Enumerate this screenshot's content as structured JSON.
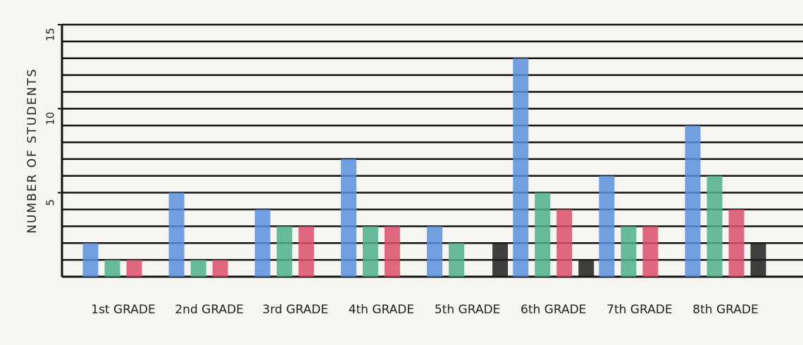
{
  "chart_data": {
    "type": "bar",
    "y_label": "NUMBER OF STUDENTS",
    "categories": [
      "1st GRADE",
      "2nd GRADE",
      "3rd GRADE",
      "4th GRADE",
      "5th GRADE",
      "6th GRADE",
      "7th GRADE",
      "8th GRADE"
    ],
    "series": [
      {
        "color": "#5b8fdc",
        "values": [
          2,
          5,
          4,
          7,
          3,
          13,
          6,
          9
        ]
      },
      {
        "color": "#4fb08a",
        "values": [
          1,
          1,
          3,
          3,
          2,
          5,
          3,
          6
        ]
      },
      {
        "color": "#dc4f6a",
        "values": [
          1,
          1,
          3,
          3,
          null,
          4,
          3,
          4
        ]
      },
      {
        "color": "#1e1e1e",
        "values": [
          null,
          null,
          null,
          null,
          2,
          1,
          null,
          2
        ]
      }
    ],
    "ylim": [
      0,
      15
    ],
    "yticks": [
      5,
      10,
      15
    ],
    "minor_yticks": [
      1,
      2,
      3,
      4,
      5,
      6,
      7,
      8,
      9,
      10,
      11,
      12,
      13,
      14,
      15
    ],
    "grid": true
  }
}
